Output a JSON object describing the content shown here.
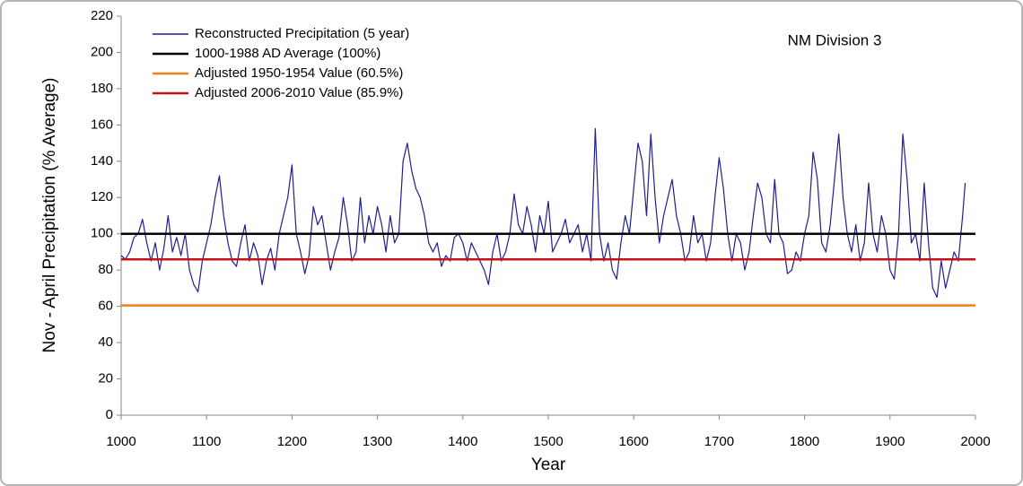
{
  "chart_data": {
    "type": "line",
    "annotation": "NM Division 3",
    "xlabel": "Year",
    "ylabel": "Nov - April Precipitation (% Average)",
    "xlim": [
      1000,
      2000
    ],
    "xticks": [
      1000,
      1100,
      1200,
      1300,
      1400,
      1500,
      1600,
      1700,
      1800,
      1900,
      2000
    ],
    "ylim": [
      0,
      220
    ],
    "yticks": [
      0,
      20,
      40,
      60,
      80,
      100,
      120,
      140,
      160,
      180,
      200,
      220
    ],
    "legend": "upper left",
    "series": [
      {
        "name": "Reconstructed Precipitation (5 year)",
        "color": "#1f1f8f",
        "x": [
          1000,
          1005,
          1010,
          1015,
          1020,
          1025,
          1030,
          1035,
          1040,
          1045,
          1050,
          1055,
          1060,
          1065,
          1070,
          1075,
          1080,
          1085,
          1090,
          1095,
          1100,
          1105,
          1110,
          1115,
          1120,
          1125,
          1130,
          1135,
          1140,
          1145,
          1150,
          1155,
          1160,
          1165,
          1170,
          1175,
          1180,
          1185,
          1190,
          1195,
          1200,
          1205,
          1210,
          1215,
          1220,
          1225,
          1230,
          1235,
          1240,
          1245,
          1250,
          1255,
          1260,
          1265,
          1270,
          1275,
          1280,
          1285,
          1290,
          1295,
          1300,
          1305,
          1310,
          1315,
          1320,
          1325,
          1330,
          1335,
          1340,
          1345,
          1350,
          1355,
          1360,
          1365,
          1370,
          1375,
          1380,
          1385,
          1390,
          1395,
          1400,
          1405,
          1410,
          1415,
          1420,
          1425,
          1430,
          1435,
          1440,
          1445,
          1450,
          1455,
          1460,
          1465,
          1470,
          1475,
          1480,
          1485,
          1490,
          1495,
          1500,
          1505,
          1510,
          1515,
          1520,
          1525,
          1530,
          1535,
          1540,
          1545,
          1550,
          1555,
          1560,
          1565,
          1570,
          1575,
          1580,
          1585,
          1590,
          1595,
          1600,
          1605,
          1610,
          1615,
          1620,
          1625,
          1630,
          1635,
          1640,
          1645,
          1650,
          1655,
          1660,
          1665,
          1670,
          1675,
          1680,
          1685,
          1690,
          1695,
          1700,
          1705,
          1710,
          1715,
          1720,
          1725,
          1730,
          1735,
          1740,
          1745,
          1750,
          1755,
          1760,
          1765,
          1770,
          1775,
          1780,
          1785,
          1790,
          1795,
          1800,
          1805,
          1810,
          1815,
          1820,
          1825,
          1830,
          1835,
          1840,
          1845,
          1850,
          1855,
          1860,
          1865,
          1870,
          1875,
          1880,
          1885,
          1890,
          1895,
          1900,
          1905,
          1910,
          1915,
          1920,
          1925,
          1930,
          1935,
          1940,
          1945,
          1950,
          1955,
          1960,
          1965,
          1970,
          1975,
          1980,
          1985,
          1988
        ],
        "values": [
          88,
          86,
          90,
          98,
          100,
          108,
          95,
          85,
          95,
          80,
          92,
          110,
          90,
          98,
          88,
          100,
          80,
          72,
          68,
          85,
          95,
          105,
          120,
          132,
          110,
          95,
          85,
          82,
          95,
          105,
          85,
          95,
          88,
          72,
          85,
          92,
          80,
          100,
          110,
          120,
          138,
          100,
          90,
          78,
          88,
          115,
          105,
          110,
          95,
          80,
          90,
          98,
          120,
          105,
          85,
          90,
          120,
          95,
          110,
          100,
          115,
          105,
          90,
          110,
          95,
          100,
          140,
          150,
          135,
          125,
          120,
          110,
          95,
          90,
          95,
          82,
          88,
          85,
          98,
          100,
          95,
          85,
          95,
          90,
          85,
          80,
          72,
          90,
          100,
          85,
          90,
          100,
          122,
          105,
          100,
          115,
          105,
          90,
          110,
          100,
          118,
          90,
          95,
          100,
          108,
          95,
          100,
          105,
          90,
          100,
          85,
          158,
          100,
          85,
          95,
          80,
          75,
          95,
          110,
          100,
          125,
          150,
          140,
          110,
          155,
          120,
          95,
          110,
          120,
          130,
          110,
          100,
          85,
          90,
          110,
          95,
          100,
          85,
          95,
          120,
          142,
          125,
          100,
          85,
          100,
          95,
          80,
          90,
          110,
          128,
          120,
          100,
          95,
          130,
          100,
          95,
          78,
          80,
          90,
          85,
          100,
          110,
          145,
          130,
          95,
          90,
          105,
          130,
          155,
          120,
          100,
          90,
          105,
          85,
          95,
          128,
          100,
          90,
          110,
          100,
          80,
          75,
          100,
          155,
          130,
          95,
          100,
          85,
          128,
          95,
          70,
          65,
          85,
          70,
          80,
          90,
          85,
          110,
          128
        ]
      },
      {
        "name": "1000-1988 AD Average (100%)",
        "color": "#000000",
        "x": [
          1000,
          2000
        ],
        "values": [
          100,
          100
        ]
      },
      {
        "name": "Adjusted 1950-1954 Value (60.5%)",
        "color": "#f07f1a",
        "x": [
          1000,
          2000
        ],
        "values": [
          60.5,
          60.5
        ]
      },
      {
        "name": "Adjusted 2006-2010 Value (85.9%)",
        "color": "#c0141c",
        "x": [
          1000,
          2000
        ],
        "values": [
          85.9,
          85.9
        ]
      }
    ]
  }
}
